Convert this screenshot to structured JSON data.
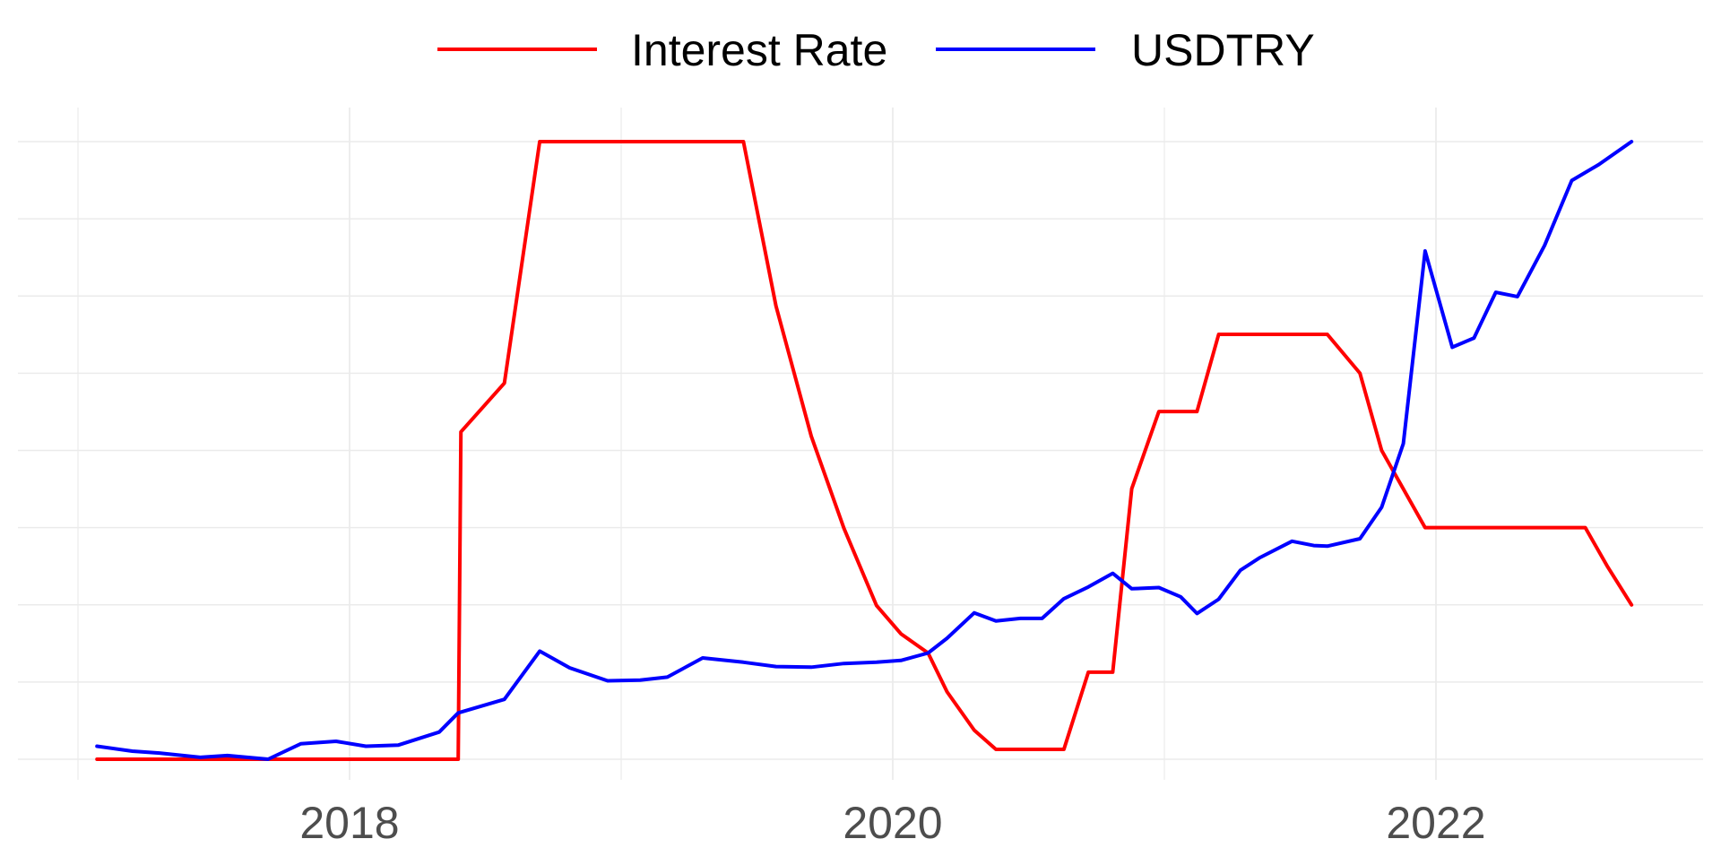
{
  "chart_data": {
    "type": "line",
    "title": "",
    "xlabel": "",
    "ylabel": "",
    "xlim": [
      2017.0,
      2023.0
    ],
    "ylim": [
      0,
      1
    ],
    "x_ticks": [
      2018,
      2020,
      2022
    ],
    "x_tick_labels": [
      "2018",
      "2020",
      "2022"
    ],
    "grid": true,
    "legend_position": "top",
    "series": [
      {
        "name": "Interest Rate",
        "color": "#ff0000",
        "points": [
          [
            2017.07,
            0.0
          ],
          [
            2018.4,
            0.0
          ],
          [
            2018.41,
            0.53
          ],
          [
            2018.57,
            0.609
          ],
          [
            2018.7,
            1.0
          ],
          [
            2019.45,
            1.0
          ],
          [
            2019.57,
            0.734
          ],
          [
            2019.7,
            0.523
          ],
          [
            2019.82,
            0.374
          ],
          [
            2019.94,
            0.249
          ],
          [
            2020.03,
            0.203
          ],
          [
            2020.13,
            0.172
          ],
          [
            2020.2,
            0.109
          ],
          [
            2020.3,
            0.047
          ],
          [
            2020.38,
            0.016
          ],
          [
            2020.63,
            0.016
          ],
          [
            2020.72,
            0.141
          ],
          [
            2020.81,
            0.141
          ],
          [
            2020.88,
            0.438
          ],
          [
            2020.98,
            0.563
          ],
          [
            2021.12,
            0.563
          ],
          [
            2021.2,
            0.688
          ],
          [
            2021.6,
            0.688
          ],
          [
            2021.72,
            0.625
          ],
          [
            2021.8,
            0.5
          ],
          [
            2021.96,
            0.375
          ],
          [
            2022.55,
            0.375
          ],
          [
            2022.63,
            0.313
          ],
          [
            2022.72,
            0.25
          ]
        ]
      },
      {
        "name": "USDTRY",
        "color": "#0000ff",
        "points": [
          [
            2017.07,
            0.021
          ],
          [
            2017.2,
            0.013
          ],
          [
            2017.3,
            0.01
          ],
          [
            2017.45,
            0.003
          ],
          [
            2017.55,
            0.006
          ],
          [
            2017.7,
            0.0
          ],
          [
            2017.82,
            0.025
          ],
          [
            2017.95,
            0.029
          ],
          [
            2018.06,
            0.021
          ],
          [
            2018.18,
            0.023
          ],
          [
            2018.33,
            0.044
          ],
          [
            2018.4,
            0.075
          ],
          [
            2018.57,
            0.097
          ],
          [
            2018.7,
            0.175
          ],
          [
            2018.81,
            0.148
          ],
          [
            2018.95,
            0.127
          ],
          [
            2019.07,
            0.128
          ],
          [
            2019.17,
            0.133
          ],
          [
            2019.3,
            0.164
          ],
          [
            2019.45,
            0.157
          ],
          [
            2019.57,
            0.15
          ],
          [
            2019.7,
            0.149
          ],
          [
            2019.82,
            0.155
          ],
          [
            2019.94,
            0.157
          ],
          [
            2020.03,
            0.16
          ],
          [
            2020.13,
            0.172
          ],
          [
            2020.2,
            0.196
          ],
          [
            2020.3,
            0.237
          ],
          [
            2020.38,
            0.224
          ],
          [
            2020.47,
            0.228
          ],
          [
            2020.55,
            0.228
          ],
          [
            2020.63,
            0.26
          ],
          [
            2020.72,
            0.279
          ],
          [
            2020.81,
            0.301
          ],
          [
            2020.88,
            0.276
          ],
          [
            2020.98,
            0.278
          ],
          [
            2021.06,
            0.263
          ],
          [
            2021.12,
            0.236
          ],
          [
            2021.2,
            0.259
          ],
          [
            2021.28,
            0.306
          ],
          [
            2021.35,
            0.326
          ],
          [
            2021.47,
            0.353
          ],
          [
            2021.55,
            0.346
          ],
          [
            2021.6,
            0.345
          ],
          [
            2021.72,
            0.357
          ],
          [
            2021.8,
            0.408
          ],
          [
            2021.88,
            0.511
          ],
          [
            2021.96,
            0.823
          ],
          [
            2022.06,
            0.667
          ],
          [
            2022.14,
            0.682
          ],
          [
            2022.22,
            0.756
          ],
          [
            2022.3,
            0.749
          ],
          [
            2022.4,
            0.832
          ],
          [
            2022.5,
            0.937
          ],
          [
            2022.6,
            0.963
          ],
          [
            2022.72,
            1.0
          ]
        ]
      }
    ]
  }
}
